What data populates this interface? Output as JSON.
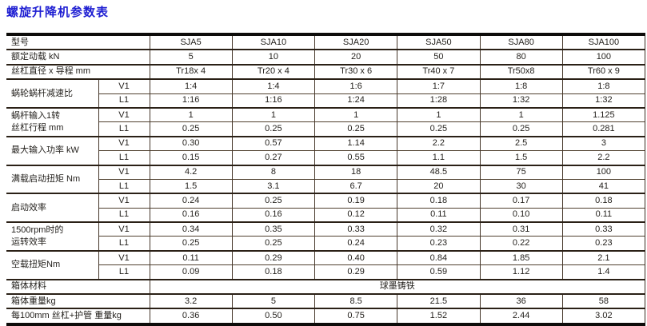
{
  "page_title": "螺旋升降机参数表",
  "accent_color": "#1e1ed2",
  "table": {
    "rows": [
      {
        "label": "型号",
        "cells": [
          "SJA5",
          "SJA10",
          "SJA20",
          "SJA50",
          "SJA80",
          "SJA100"
        ]
      },
      {
        "label": "额定动载 kN",
        "cells": [
          "5",
          "10",
          "20",
          "50",
          "80",
          "100"
        ]
      },
      {
        "label": "丝杠直径 x 导程 mm",
        "cells": [
          "Tr18x 4",
          "Tr20 x 4",
          "Tr30 x 6",
          "Tr40 x 7",
          "Tr50x8",
          "Tr60 x 9"
        ]
      },
      {
        "label": "蜗轮蜗杆减速比",
        "span": 2,
        "sub": "V1",
        "cells": [
          "1:4",
          "1:4",
          "1:6",
          "1:7",
          "1:8",
          "1:8"
        ]
      },
      {
        "sub": "L1",
        "cells": [
          "1:16",
          "1:16",
          "1:24",
          "1:28",
          "1:32",
          "1:32"
        ]
      },
      {
        "label": "蜗杆输入1转\n丝杠行程 mm",
        "span": 2,
        "sub": "V1",
        "cells": [
          "1",
          "1",
          "1",
          "1",
          "1",
          "1.125"
        ]
      },
      {
        "sub": "L1",
        "cells": [
          "0.25",
          "0.25",
          "0.25",
          "0.25",
          "0.25",
          "0.281"
        ]
      },
      {
        "label": "最大输入功率 kW",
        "span": 2,
        "sub": "V1",
        "cells": [
          "0.30",
          "0.57",
          "1.14",
          "2.2",
          "2.5",
          "3"
        ]
      },
      {
        "sub": "L1",
        "cells": [
          "0.15",
          "0.27",
          "0.55",
          "1.1",
          "1.5",
          "2.2"
        ]
      },
      {
        "label": "满载启动扭矩 Nm",
        "span": 2,
        "sub": "V1",
        "cells": [
          "4.2",
          "8",
          "18",
          "48.5",
          "75",
          "100"
        ]
      },
      {
        "sub": "L1",
        "cells": [
          "1.5",
          "3.1",
          "6.7",
          "20",
          "30",
          "41"
        ]
      },
      {
        "label": "启动效率",
        "span": 2,
        "sub": "V1",
        "cells": [
          "0.24",
          "0.25",
          "0.19",
          "0.18",
          "0.17",
          "0.18"
        ]
      },
      {
        "sub": "L1",
        "cells": [
          "0.16",
          "0.16",
          "0.12",
          "0.11",
          "0.10",
          "0.11"
        ]
      },
      {
        "label": "1500rpm时的\n运转效率",
        "span": 2,
        "sub": "V1",
        "cells": [
          "0.34",
          "0.35",
          "0.33",
          "0.32",
          "0.31",
          "0.33"
        ]
      },
      {
        "sub": "L1",
        "cells": [
          "0.25",
          "0.25",
          "0.24",
          "0.23",
          "0.22",
          "0.23"
        ]
      },
      {
        "label": "空载扭矩Nm",
        "span": 2,
        "sub": "V1",
        "cells": [
          "0.11",
          "0.29",
          "0.40",
          "0.84",
          "1.85",
          "2.1"
        ]
      },
      {
        "sub": "L1",
        "cells": [
          "0.09",
          "0.18",
          "0.29",
          "0.59",
          "1.12",
          "1.4"
        ]
      },
      {
        "label": "箱体材料",
        "merged": "球墨铸铁"
      },
      {
        "label": "箱体重量kg",
        "cells": [
          "3.2",
          "5",
          "8.5",
          "21.5",
          "36",
          "58"
        ]
      },
      {
        "label": "每100mm 丝杠+护管 重量kg",
        "cells": [
          "0.36",
          "0.50",
          "0.75",
          "1.52",
          "2.44",
          "3.02"
        ]
      }
    ]
  }
}
